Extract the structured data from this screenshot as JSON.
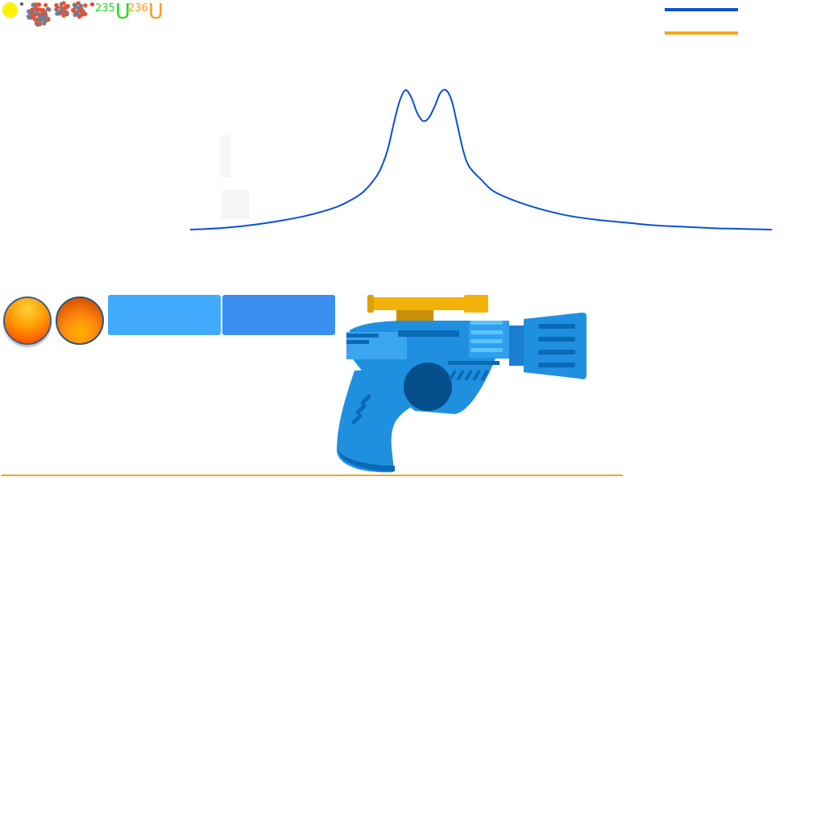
{
  "header": {
    "isotopes": [
      {
        "mass": "235",
        "symbol": "U",
        "color": "#22dd22"
      },
      {
        "mass": "236",
        "symbol": "U",
        "color": "#ff9a1f"
      }
    ],
    "particle_icons": [
      "photon-icon",
      "electron-icon",
      "nucleus-cluster-icon",
      "nucleus-pair-icon",
      "neutron-icon"
    ]
  },
  "legend": {
    "series_colors": [
      "#0a50d8",
      "#f0a81c"
    ]
  },
  "chart_data": {
    "type": "line",
    "series": [
      {
        "color": "#0a50d8",
        "x": [
          0,
          5,
          10,
          15,
          20,
          25,
          28,
          30,
          32,
          33,
          34,
          35,
          36,
          37,
          38,
          39,
          40,
          41,
          42,
          43,
          44,
          45,
          46,
          47,
          48,
          50,
          52,
          55,
          60,
          65,
          70,
          75,
          80,
          85,
          90,
          95,
          100
        ],
        "y": [
          0.0,
          0.01,
          0.03,
          0.06,
          0.1,
          0.16,
          0.22,
          0.28,
          0.38,
          0.46,
          0.58,
          0.76,
          0.92,
          1.0,
          0.95,
          0.84,
          0.78,
          0.8,
          0.88,
          0.98,
          1.0,
          0.92,
          0.74,
          0.56,
          0.45,
          0.36,
          0.28,
          0.22,
          0.15,
          0.1,
          0.07,
          0.05,
          0.03,
          0.02,
          0.01,
          0.005,
          0.0
        ]
      }
    ],
    "grid": false
  },
  "controls": {
    "orb_colors": [
      "#ff7a00",
      "#e86a00"
    ],
    "tile_colors": [
      "#42aafc",
      "#3a8ff0"
    ]
  },
  "ray_gun": {
    "body_color": "#1f8fe0",
    "scope_color": "#f2b20a"
  },
  "track": {
    "color": "#f0a81c"
  }
}
